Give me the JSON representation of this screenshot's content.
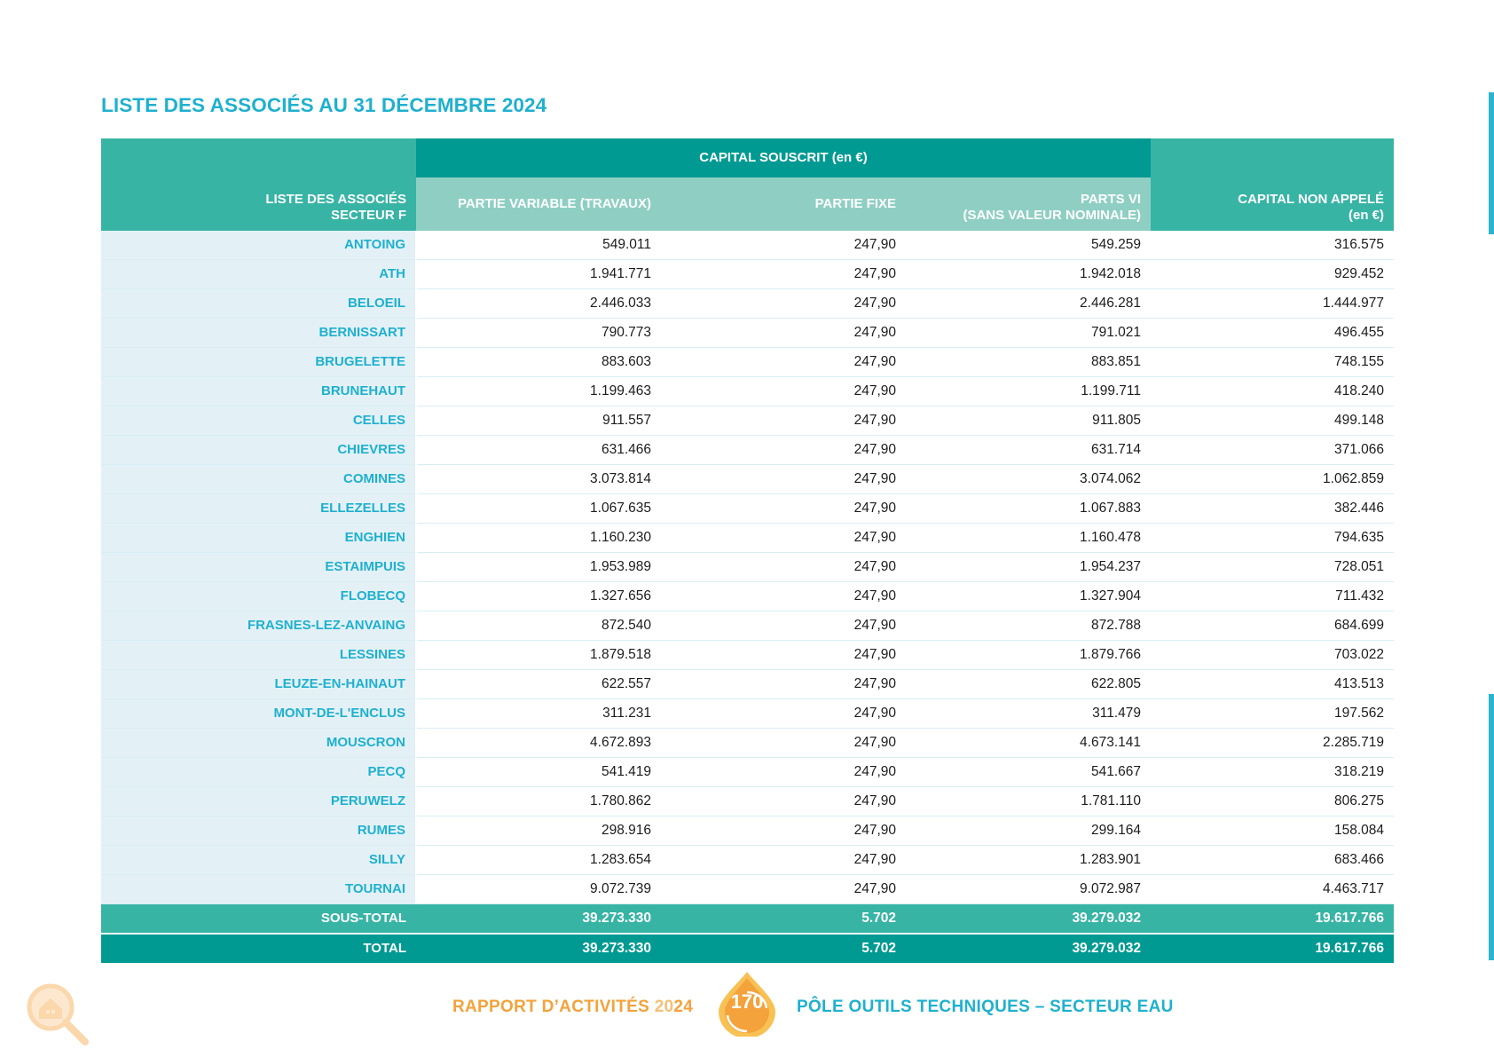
{
  "document": {
    "title": "LISTE DES ASSOCIÉS AU 31 DÉCEMBRE 2024"
  },
  "table": {
    "group_header": "CAPITAL SOUSCRIT (en €)",
    "col_associes_line1": "LISTE DES ASSOCIÉS",
    "col_associes_line2": "SECTEUR F",
    "col_variable": "PARTIE VARIABLE (TRAVAUX)",
    "col_fixe": "PARTIE FIXE",
    "col_parts_line1": "PARTS VI",
    "col_parts_line2": "(SANS VALEUR NOMINALE)",
    "col_non_appele_line1": "CAPITAL NON APPELÉ",
    "col_non_appele_line2": "(en €)",
    "rows": [
      {
        "name": "ANTOING",
        "variable": "549.011",
        "fixe": "247,90",
        "parts": "549.259",
        "non_appele": "316.575"
      },
      {
        "name": "ATH",
        "variable": "1.941.771",
        "fixe": "247,90",
        "parts": "1.942.018",
        "non_appele": "929.452"
      },
      {
        "name": "BELOEIL",
        "variable": "2.446.033",
        "fixe": "247,90",
        "parts": "2.446.281",
        "non_appele": "1.444.977"
      },
      {
        "name": "BERNISSART",
        "variable": "790.773",
        "fixe": "247,90",
        "parts": "791.021",
        "non_appele": "496.455"
      },
      {
        "name": "BRUGELETTE",
        "variable": "883.603",
        "fixe": "247,90",
        "parts": "883.851",
        "non_appele": "748.155"
      },
      {
        "name": "BRUNEHAUT",
        "variable": "1.199.463",
        "fixe": "247,90",
        "parts": "1.199.711",
        "non_appele": "418.240"
      },
      {
        "name": "CELLES",
        "variable": "911.557",
        "fixe": "247,90",
        "parts": "911.805",
        "non_appele": "499.148"
      },
      {
        "name": "CHIEVRES",
        "variable": "631.466",
        "fixe": "247,90",
        "parts": "631.714",
        "non_appele": "371.066"
      },
      {
        "name": "COMINES",
        "variable": "3.073.814",
        "fixe": "247,90",
        "parts": "3.074.062",
        "non_appele": "1.062.859"
      },
      {
        "name": "ELLEZELLES",
        "variable": "1.067.635",
        "fixe": "247,90",
        "parts": "1.067.883",
        "non_appele": "382.446"
      },
      {
        "name": "ENGHIEN",
        "variable": "1.160.230",
        "fixe": "247,90",
        "parts": "1.160.478",
        "non_appele": "794.635"
      },
      {
        "name": "ESTAIMPUIS",
        "variable": "1.953.989",
        "fixe": "247,90",
        "parts": "1.954.237",
        "non_appele": "728.051"
      },
      {
        "name": "FLOBECQ",
        "variable": "1.327.656",
        "fixe": "247,90",
        "parts": "1.327.904",
        "non_appele": "711.432"
      },
      {
        "name": "FRASNES-LEZ-ANVAING",
        "variable": "872.540",
        "fixe": "247,90",
        "parts": "872.788",
        "non_appele": "684.699"
      },
      {
        "name": "LESSINES",
        "variable": "1.879.518",
        "fixe": "247,90",
        "parts": "1.879.766",
        "non_appele": "703.022"
      },
      {
        "name": "LEUZE-EN-HAINAUT",
        "variable": "622.557",
        "fixe": "247,90",
        "parts": "622.805",
        "non_appele": "413.513"
      },
      {
        "name": "MONT-DE-L'ENCLUS",
        "variable": "311.231",
        "fixe": "247,90",
        "parts": "311.479",
        "non_appele": "197.562"
      },
      {
        "name": "MOUSCRON",
        "variable": "4.672.893",
        "fixe": "247,90",
        "parts": "4.673.141",
        "non_appele": "2.285.719"
      },
      {
        "name": "PECQ",
        "variable": "541.419",
        "fixe": "247,90",
        "parts": "541.667",
        "non_appele": "318.219"
      },
      {
        "name": "PERUWELZ",
        "variable": "1.780.862",
        "fixe": "247,90",
        "parts": "1.781.110",
        "non_appele": "806.275"
      },
      {
        "name": "RUMES",
        "variable": "298.916",
        "fixe": "247,90",
        "parts": "299.164",
        "non_appele": "158.084"
      },
      {
        "name": "SILLY",
        "variable": "1.283.654",
        "fixe": "247,90",
        "parts": "1.283.901",
        "non_appele": "683.466"
      },
      {
        "name": "TOURNAI",
        "variable": "9.072.739",
        "fixe": "247,90",
        "parts": "9.072.987",
        "non_appele": "4.463.717"
      }
    ],
    "subtotal": {
      "label": "SOUS-TOTAL",
      "variable": "39.273.330",
      "fixe": "5.702",
      "parts": "39.279.032",
      "non_appele": "19.617.766"
    },
    "total": {
      "label": "TOTAL",
      "variable": "39.273.330",
      "fixe": "5.702",
      "parts": "39.279.032",
      "non_appele": "19.617.766"
    }
  },
  "footer": {
    "left_text": "RAPPORT D’ACTIVITÉS ",
    "year_part1": "20",
    "year_part2": "24",
    "page_number": "170",
    "right_text": "PÔLE OUTILS TECHNIQUES – SECTEUR EAU",
    "badge_icon": "water-drop-icon",
    "corner_icon": "house-magnifier-icon",
    "colors": {
      "primary": "#1fb0cf",
      "teal": "#009a92",
      "teal_light": "#38b4a5",
      "orange": "#f4a23b"
    }
  }
}
